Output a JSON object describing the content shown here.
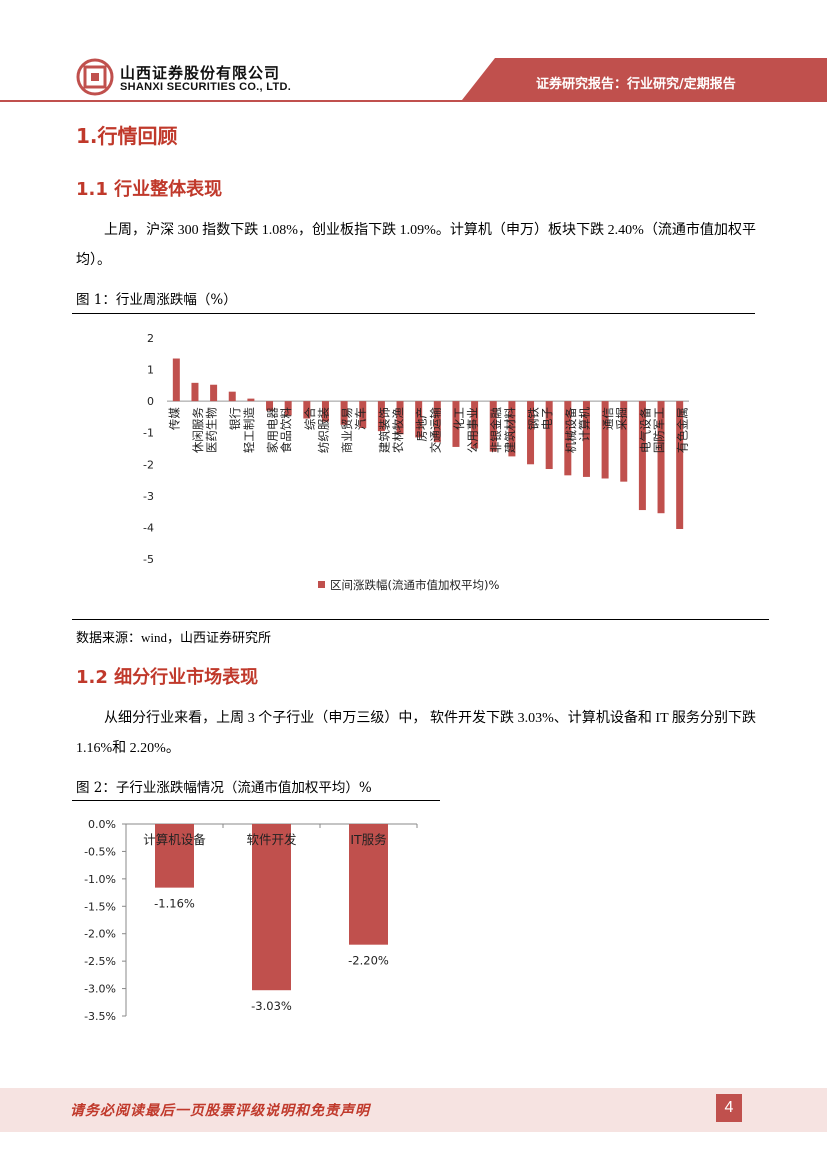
{
  "header": {
    "company_cn": "山西证券股份有限公司",
    "company_en": "SHANXI SECURITIES CO., LTD.",
    "report_type": "证券研究报告：行业研究/定期报告"
  },
  "section1": {
    "title": "1.行情回顾"
  },
  "section1_1": {
    "title": "1.1 行业整体表现",
    "paragraph": "上周，沪深 300 指数下跌 1.08%，创业板指下跌 1.09%。计算机（申万）板块下跌 2.40%（流通市值加权平均）。",
    "figure_caption": "图 1：行业周涨跌幅（%）",
    "source": "数据来源：wind，山西证券研究所"
  },
  "section1_2": {
    "title": "1.2 细分行业市场表现",
    "paragraph": "从细分行业来看，上周 3 个子行业（申万三级）中， 软件开发下跌 3.03%、计算机设备和 IT 服务分别下跌 1.16%和 2.20%。",
    "figure_caption": "图 2：子行业涨跌幅情况（流通市值加权平均）%"
  },
  "chart_data": [
    {
      "type": "bar",
      "title": "",
      "categories": [
        "传媒",
        "休闲服务",
        "医药生物",
        "银行",
        "轻工制造",
        "家用电器",
        "食品饮料",
        "综合",
        "纺织服装",
        "商业贸易",
        "汽车",
        "建筑装饰",
        "农林牧渔",
        "房地产",
        "交通运输",
        "化工",
        "公用事业",
        "非银金融",
        "建筑材料",
        "钢铁",
        "电子",
        "机械设备",
        "计算机",
        "通信",
        "采掘",
        "电气设备",
        "国防军工",
        "有色金属"
      ],
      "values": [
        1.35,
        0.58,
        0.52,
        0.3,
        0.08,
        -0.3,
        -0.45,
        -0.55,
        -0.65,
        -0.75,
        -0.85,
        -0.95,
        -1.05,
        -1.15,
        -1.3,
        -1.45,
        -1.5,
        -1.6,
        -1.75,
        -2.0,
        -2.15,
        -2.35,
        -2.4,
        -2.45,
        -2.55,
        -3.45,
        -3.55,
        -4.05
      ],
      "ylim": [
        -5,
        2
      ],
      "yticks": [
        2,
        1,
        0,
        -1,
        -2,
        -3,
        -4,
        -5
      ],
      "legend": "区间涨跌幅(流通市值加权平均)%",
      "legend_position": "bottom",
      "color": "#c0504d"
    },
    {
      "type": "bar",
      "title": "",
      "categories": [
        "计算机设备",
        "软件开发",
        "IT服务"
      ],
      "values": [
        -1.16,
        -3.03,
        -2.2
      ],
      "labels": [
        "-1.16%",
        "-3.03%",
        "-2.20%"
      ],
      "ylim": [
        -3.5,
        0
      ],
      "yticks": [
        "0.0%",
        "-0.5%",
        "-1.0%",
        "-1.5%",
        "-2.0%",
        "-2.5%",
        "-3.0%",
        "-3.5%"
      ],
      "color": "#c0504d"
    }
  ],
  "footer": {
    "disclaimer": "请务必阅读最后一页股票评级说明和免责声明",
    "page_number": "4"
  }
}
